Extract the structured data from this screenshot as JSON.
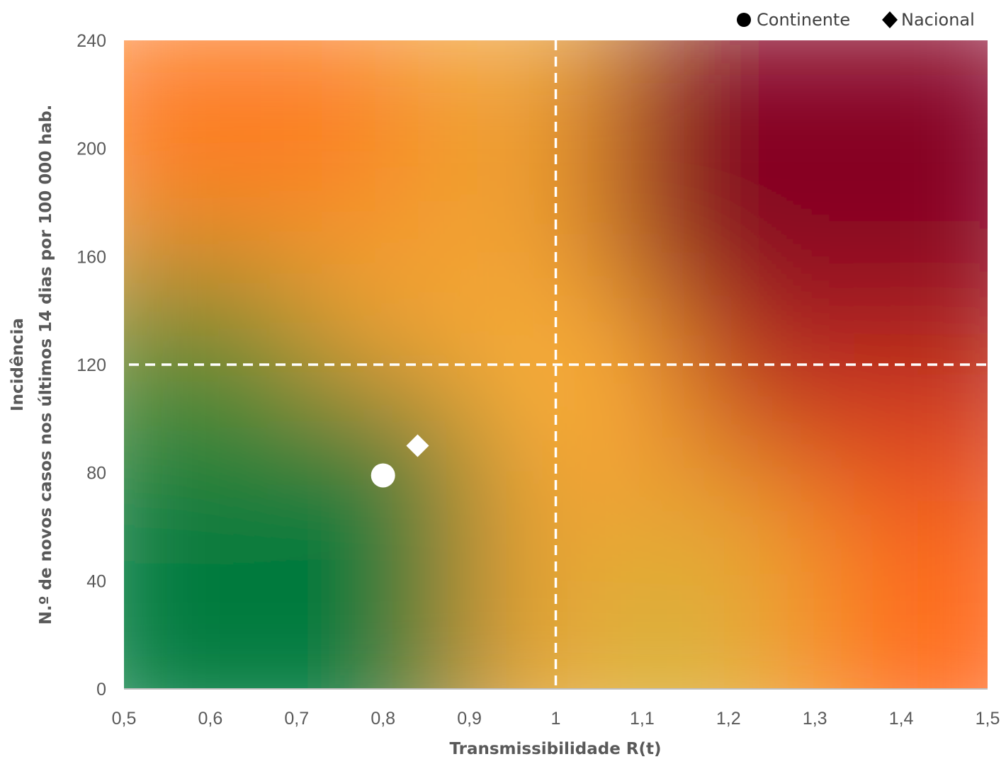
{
  "chart_data": {
    "type": "scatter",
    "title": "",
    "xlabel": "Transmissibilidade R(t)",
    "ylabel_line1": "Incidência",
    "ylabel_line2": "N.º de novos casos nos últimos 14 dias por 100 000 hab.",
    "xlim": [
      0.5,
      1.5
    ],
    "ylim": [
      0,
      240
    ],
    "x_ticks": [
      0.5,
      0.6,
      0.7,
      0.8,
      0.9,
      1.0,
      1.1,
      1.2,
      1.3,
      1.4,
      1.5
    ],
    "x_tick_labels": [
      "0,5",
      "0,6",
      "0,7",
      "0,8",
      "0,9",
      "1",
      "1,1",
      "1,2",
      "1,3",
      "1,4",
      "1,5"
    ],
    "y_ticks": [
      0,
      40,
      80,
      120,
      160,
      200,
      240
    ],
    "y_tick_labels": [
      "0",
      "40",
      "80",
      "120",
      "160",
      "200",
      "240"
    ],
    "thresholds": {
      "x": 1.0,
      "y": 120
    },
    "legend_position": "top-right",
    "series": [
      {
        "name": "Continente",
        "marker": "circle",
        "color": "#ffffff",
        "points": [
          {
            "x": 0.8,
            "y": 79
          }
        ]
      },
      {
        "name": "Nacional",
        "marker": "diamond",
        "color": "#ffffff",
        "points": [
          {
            "x": 0.84,
            "y": 90
          }
        ]
      }
    ],
    "background_colors": {
      "low_risk": "#007a3d",
      "medium_risk": "#fbb03b",
      "high_risk_orange": "#ff6a1a",
      "high_risk_red": "#7d0020"
    },
    "grid": false
  }
}
